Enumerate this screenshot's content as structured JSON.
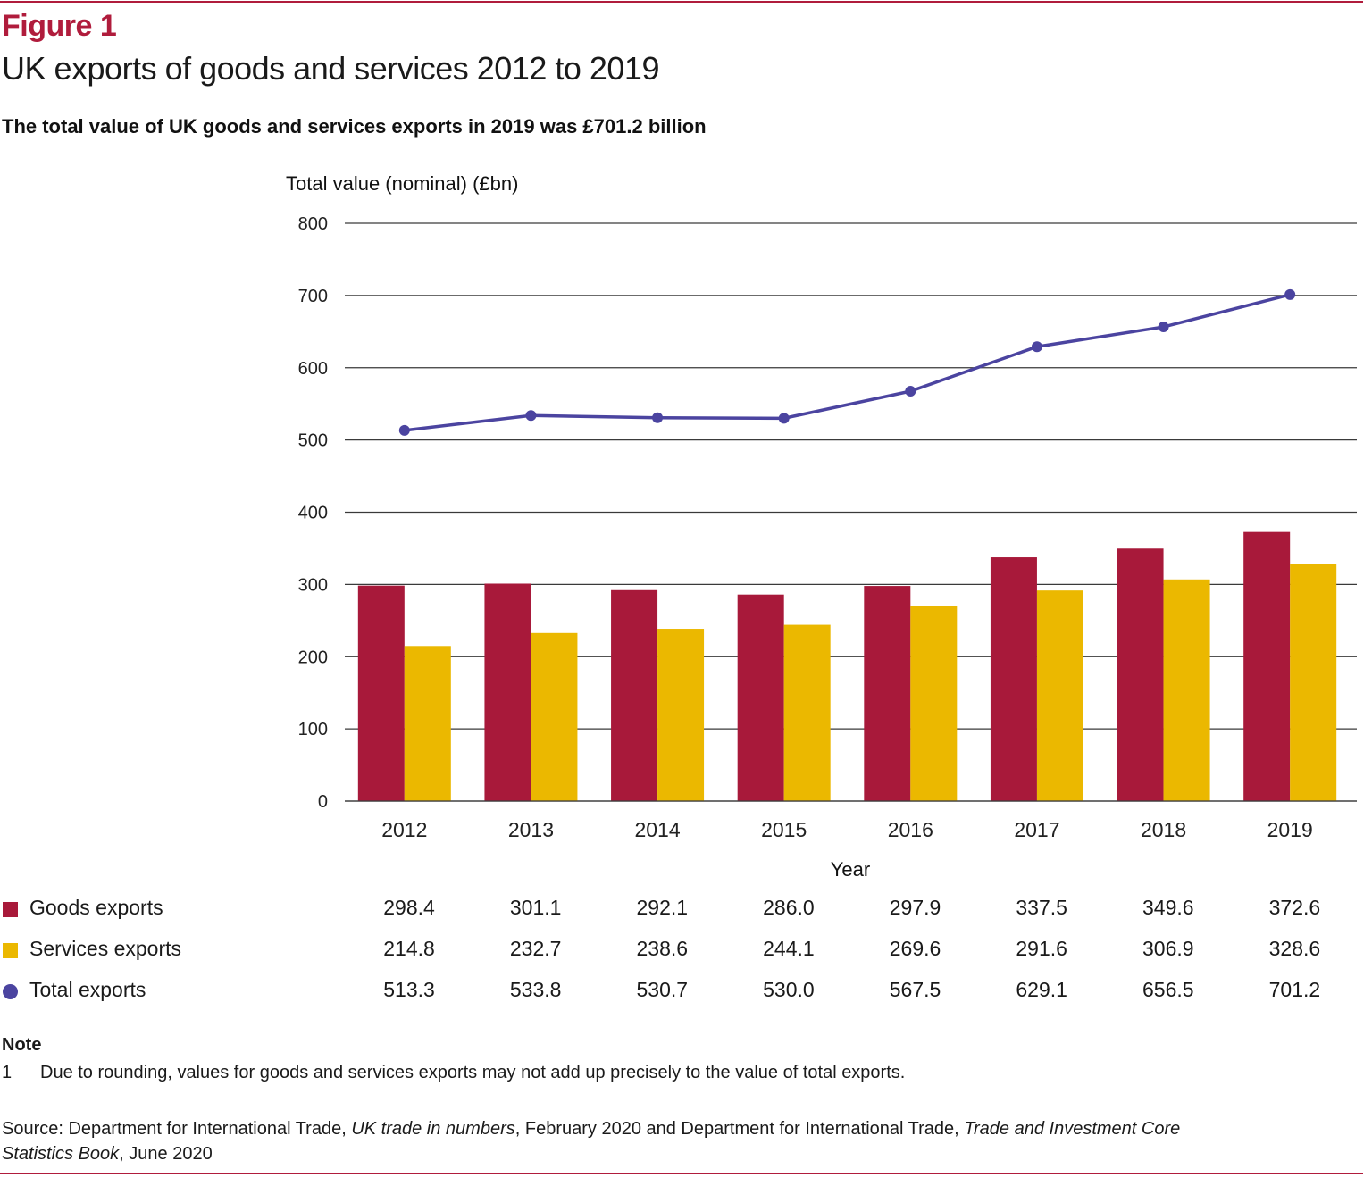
{
  "header": {
    "figure_label": "Figure 1",
    "title": "UK exports of goods and services 2012 to 2019",
    "subtitle": "The total value of UK goods and services exports in 2019 was £701.2 billion"
  },
  "colors": {
    "brand": "#b01c3c",
    "goods": "#a8193a",
    "services": "#ebb800",
    "total": "#4b44a0",
    "grid": "#3a3a3a"
  },
  "chart_data": {
    "type": "bar",
    "ylabel": "Total value (nominal) (£bn)",
    "xlabel": "Year",
    "ylim": [
      0,
      800
    ],
    "yticks": [
      0,
      100,
      200,
      300,
      400,
      500,
      600,
      700,
      800
    ],
    "grid": true,
    "categories": [
      "2012",
      "2013",
      "2014",
      "2015",
      "2016",
      "2017",
      "2018",
      "2019"
    ],
    "series": [
      {
        "name": "Goods exports",
        "kind": "bar",
        "values": [
          298.4,
          301.1,
          292.1,
          286.0,
          297.9,
          337.5,
          349.6,
          372.6
        ]
      },
      {
        "name": "Services exports",
        "kind": "bar",
        "values": [
          214.8,
          232.7,
          238.6,
          244.1,
          269.6,
          291.6,
          306.9,
          328.6
        ]
      },
      {
        "name": "Total exports",
        "kind": "line",
        "values": [
          513.3,
          533.8,
          530.7,
          530.0,
          567.5,
          629.1,
          656.5,
          701.2
        ]
      }
    ]
  },
  "table": {
    "rows": [
      {
        "label": "Goods exports",
        "cells": [
          "298.4",
          "301.1",
          "292.1",
          "286.0",
          "297.9",
          "337.5",
          "349.6",
          "372.6"
        ]
      },
      {
        "label": "Services exports",
        "cells": [
          "214.8",
          "232.7",
          "238.6",
          "244.1",
          "269.6",
          "291.6",
          "306.9",
          "328.6"
        ]
      },
      {
        "label": "Total exports",
        "cells": [
          "513.3",
          "533.8",
          "530.7",
          "530.0",
          "567.5",
          "629.1",
          "656.5",
          "701.2"
        ]
      }
    ]
  },
  "note": {
    "heading": "Note",
    "number": "1",
    "text": "Due to rounding, values for goods and services exports may not add up precisely to the value of total exports."
  },
  "source": {
    "prefix": "Source: Department for International Trade, ",
    "title1": "UK trade in numbers",
    "middle": ", February 2020 and Department for International Trade, ",
    "title2": "Trade and Investment Core Statistics Book",
    "suffix": ", June 2020"
  }
}
